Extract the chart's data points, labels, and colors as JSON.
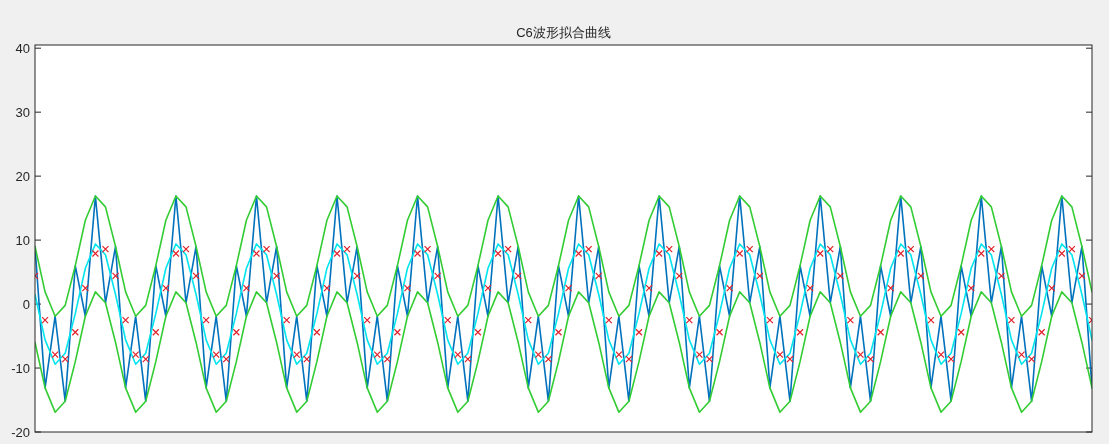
{
  "chart_data": {
    "type": "line",
    "title": "C6波形拟合曲线",
    "categories": [
      null,
      null,
      null,
      null,
      null,
      null,
      null,
      null,
      null,
      null,
      null,
      null,
      null,
      null,
      null,
      null,
      null,
      null,
      null,
      null,
      null,
      null,
      null,
      null,
      null,
      null,
      null,
      null,
      null,
      null,
      null,
      null,
      null,
      null,
      null,
      null,
      null,
      null,
      null,
      null,
      null,
      null,
      null,
      null,
      null,
      null,
      null,
      null,
      null,
      null,
      null,
      null,
      null,
      null,
      null,
      null,
      null,
      null,
      null,
      null,
      null,
      null,
      null,
      null,
      null,
      null,
      null,
      null,
      null,
      null,
      null,
      null,
      null,
      null,
      null,
      null,
      null,
      null,
      null,
      null,
      null,
      null,
      null,
      null,
      null,
      null,
      null,
      null,
      null,
      null,
      null,
      null,
      null,
      null,
      null,
      null,
      null,
      null,
      null,
      null,
      null,
      null,
      null,
      null,
      null,
      null
    ],
    "ylim": [
      -20,
      40.5
    ],
    "yticks": [
      -20,
      -10,
      0,
      10,
      20,
      30,
      40
    ],
    "tick_labels": "y",
    "series": [
      {
        "color": "#0072bd",
        "values": [
          9,
          -13.1,
          -1.9,
          -15.2,
          6,
          -1.9,
          16.9,
          0.2,
          9,
          -13.1,
          -1.9,
          -15.2,
          6,
          -1.9,
          16.9,
          0.2,
          9,
          -13.1,
          -1.9,
          -15.2,
          6,
          -1.9,
          16.9,
          0.2,
          9,
          -13.1,
          -1.9,
          -15.2,
          6,
          -1.9,
          16.9,
          0.2,
          9,
          -13.1,
          -1.9,
          -15.2,
          6,
          -1.9,
          16.9,
          0.2,
          9,
          -13.1,
          -1.9,
          -15.2,
          6,
          -1.9,
          16.9,
          0.2,
          9,
          -13.1,
          -1.9,
          -15.2,
          6,
          -1.9,
          16.9,
          0.2,
          9,
          -13.1,
          -1.9,
          -15.2,
          6,
          -1.9,
          16.9,
          0.2,
          9,
          -13.1,
          -1.9,
          -15.2,
          6,
          -1.9,
          16.9,
          0.2,
          9,
          -13.1,
          -1.9,
          -15.2,
          6,
          -1.9,
          16.9,
          0.2,
          9,
          -13.1,
          -1.9,
          -15.2,
          6,
          -1.9,
          16.9,
          0.2,
          9,
          -13.1,
          -1.9,
          -15.2,
          6,
          -1.9,
          16.9,
          0.2,
          9,
          -13.1,
          -1.9,
          -15.2,
          6,
          -1.9,
          16.9,
          0.2,
          9,
          -13.1
        ]
      },
      {
        "color": "#33cc33",
        "values": [
          9,
          1.9,
          -1.9,
          -0.2,
          6,
          13.1,
          16.9,
          15.2,
          9,
          1.9,
          -1.9,
          -0.2,
          6,
          13.1,
          16.9,
          15.2,
          9,
          1.9,
          -1.9,
          -0.2,
          6,
          13.1,
          16.9,
          15.2,
          9,
          1.9,
          -1.9,
          -0.2,
          6,
          13.1,
          16.9,
          15.2,
          9,
          1.9,
          -1.9,
          -0.2,
          6,
          13.1,
          16.9,
          15.2,
          9,
          1.9,
          -1.9,
          -0.2,
          6,
          13.1,
          16.9,
          15.2,
          9,
          1.9,
          -1.9,
          -0.2,
          6,
          13.1,
          16.9,
          15.2,
          9,
          1.9,
          -1.9,
          -0.2,
          6,
          13.1,
          16.9,
          15.2,
          9,
          1.9,
          -1.9,
          -0.2,
          6,
          13.1,
          16.9,
          15.2,
          9,
          1.9,
          -1.9,
          -0.2,
          6,
          13.1,
          16.9,
          15.2,
          9,
          1.9,
          -1.9,
          -0.2,
          6,
          13.1,
          16.9,
          15.2,
          9,
          1.9,
          -1.9,
          -0.2,
          6,
          13.1,
          16.9,
          15.2,
          9,
          1.9,
          -1.9,
          -0.2,
          6,
          13.1,
          16.9,
          15.2,
          9,
          1.9
        ]
      },
      {
        "color": "#33cc33",
        "values": [
          -6,
          -13.1,
          -16.9,
          -15.2,
          -9,
          -1.9,
          1.9,
          0.2,
          -6,
          -13.1,
          -16.9,
          -15.2,
          -9,
          -1.9,
          1.9,
          0.2,
          -6,
          -13.1,
          -16.9,
          -15.2,
          -9,
          -1.9,
          1.9,
          0.2,
          -6,
          -13.1,
          -16.9,
          -15.2,
          -9,
          -1.9,
          1.9,
          0.2,
          -6,
          -13.1,
          -16.9,
          -15.2,
          -9,
          -1.9,
          1.9,
          0.2,
          -6,
          -13.1,
          -16.9,
          -15.2,
          -9,
          -1.9,
          1.9,
          0.2,
          -6,
          -13.1,
          -16.9,
          -15.2,
          -9,
          -1.9,
          1.9,
          0.2,
          -6,
          -13.1,
          -16.9,
          -15.2,
          -9,
          -1.9,
          1.9,
          0.2,
          -6,
          -13.1,
          -16.9,
          -15.2,
          -9,
          -1.9,
          1.9,
          0.2,
          -6,
          -13.1,
          -16.9,
          -15.2,
          -9,
          -1.9,
          1.9,
          0.2,
          -6,
          -13.1,
          -16.9,
          -15.2,
          -9,
          -1.9,
          1.9,
          0.2,
          -6,
          -13.1,
          -16.9,
          -15.2,
          -9,
          -1.9,
          1.9,
          0.2,
          -6,
          -13.1,
          -16.9,
          -15.2,
          -9,
          -1.9,
          1.9,
          0.2,
          -6,
          -13.1
        ]
      },
      {
        "color": "#00e5ee",
        "values": [
          1.5,
          -5.6,
          -9.4,
          -7.7,
          -1.5,
          5.6,
          9.4,
          7.7,
          1.5,
          -5.6,
          -9.4,
          -7.7,
          -1.5,
          5.6,
          9.4,
          7.7,
          1.5,
          -5.6,
          -9.4,
          -7.7,
          -1.5,
          5.6,
          9.4,
          7.7,
          1.5,
          -5.6,
          -9.4,
          -7.7,
          -1.5,
          5.6,
          9.4,
          7.7,
          1.5,
          -5.6,
          -9.4,
          -7.7,
          -1.5,
          5.6,
          9.4,
          7.7,
          1.5,
          -5.6,
          -9.4,
          -7.7,
          -1.5,
          5.6,
          9.4,
          7.7,
          1.5,
          -5.6,
          -9.4,
          -7.7,
          -1.5,
          5.6,
          9.4,
          7.7,
          1.5,
          -5.6,
          -9.4,
          -7.7,
          -1.5,
          5.6,
          9.4,
          7.7,
          1.5,
          -5.6,
          -9.4,
          -7.7,
          -1.5,
          5.6,
          9.4,
          7.7,
          1.5,
          -5.6,
          -9.4,
          -7.7,
          -1.5,
          5.6,
          9.4,
          7.7,
          1.5,
          -5.6,
          -9.4,
          -7.7,
          -1.5,
          5.6,
          9.4,
          7.7,
          1.5,
          -5.6,
          -9.4,
          -7.7,
          -1.5,
          5.6,
          9.4,
          7.7,
          1.5,
          -5.6,
          -9.4,
          -7.7,
          -1.5,
          5.6,
          9.4,
          7.7,
          1.5,
          -5.6
        ]
      },
      {
        "type": "scatter",
        "marker": "cross",
        "color": "#e0202a",
        "values": [
          4.4,
          -2.5,
          -7.9,
          -8.6,
          -4.4,
          2.5,
          7.9,
          8.6,
          4.4,
          -2.5,
          -7.9,
          -8.6,
          -4.4,
          2.5,
          7.9,
          8.6,
          4.4,
          -2.5,
          -7.9,
          -8.6,
          -4.4,
          2.5,
          7.9,
          8.6,
          4.4,
          -2.5,
          -7.9,
          -8.6,
          -4.4,
          2.5,
          7.9,
          8.6,
          4.4,
          -2.5,
          -7.9,
          -8.6,
          -4.4,
          2.5,
          7.9,
          8.6,
          4.4,
          -2.5,
          -7.9,
          -8.6,
          -4.4,
          2.5,
          7.9,
          8.6,
          4.4,
          -2.5,
          -7.9,
          -8.6,
          -4.4,
          2.5,
          7.9,
          8.6,
          4.4,
          -2.5,
          -7.9,
          -8.6,
          -4.4,
          2.5,
          7.9,
          8.6,
          4.4,
          -2.5,
          -7.9,
          -8.6,
          -4.4,
          2.5,
          7.9,
          8.6,
          4.4,
          -2.5,
          -7.9,
          -8.6,
          -4.4,
          2.5,
          7.9,
          8.6,
          4.4,
          -2.5,
          -7.9,
          -8.6,
          -4.4,
          2.5,
          7.9,
          8.6,
          4.4,
          -2.5,
          -7.9,
          -8.6,
          -4.4,
          2.5,
          7.9,
          8.6,
          4.4,
          -2.5,
          -7.9,
          -8.6,
          -4.4,
          2.5,
          7.9,
          8.6,
          4.4,
          -2.5
        ]
      }
    ]
  }
}
